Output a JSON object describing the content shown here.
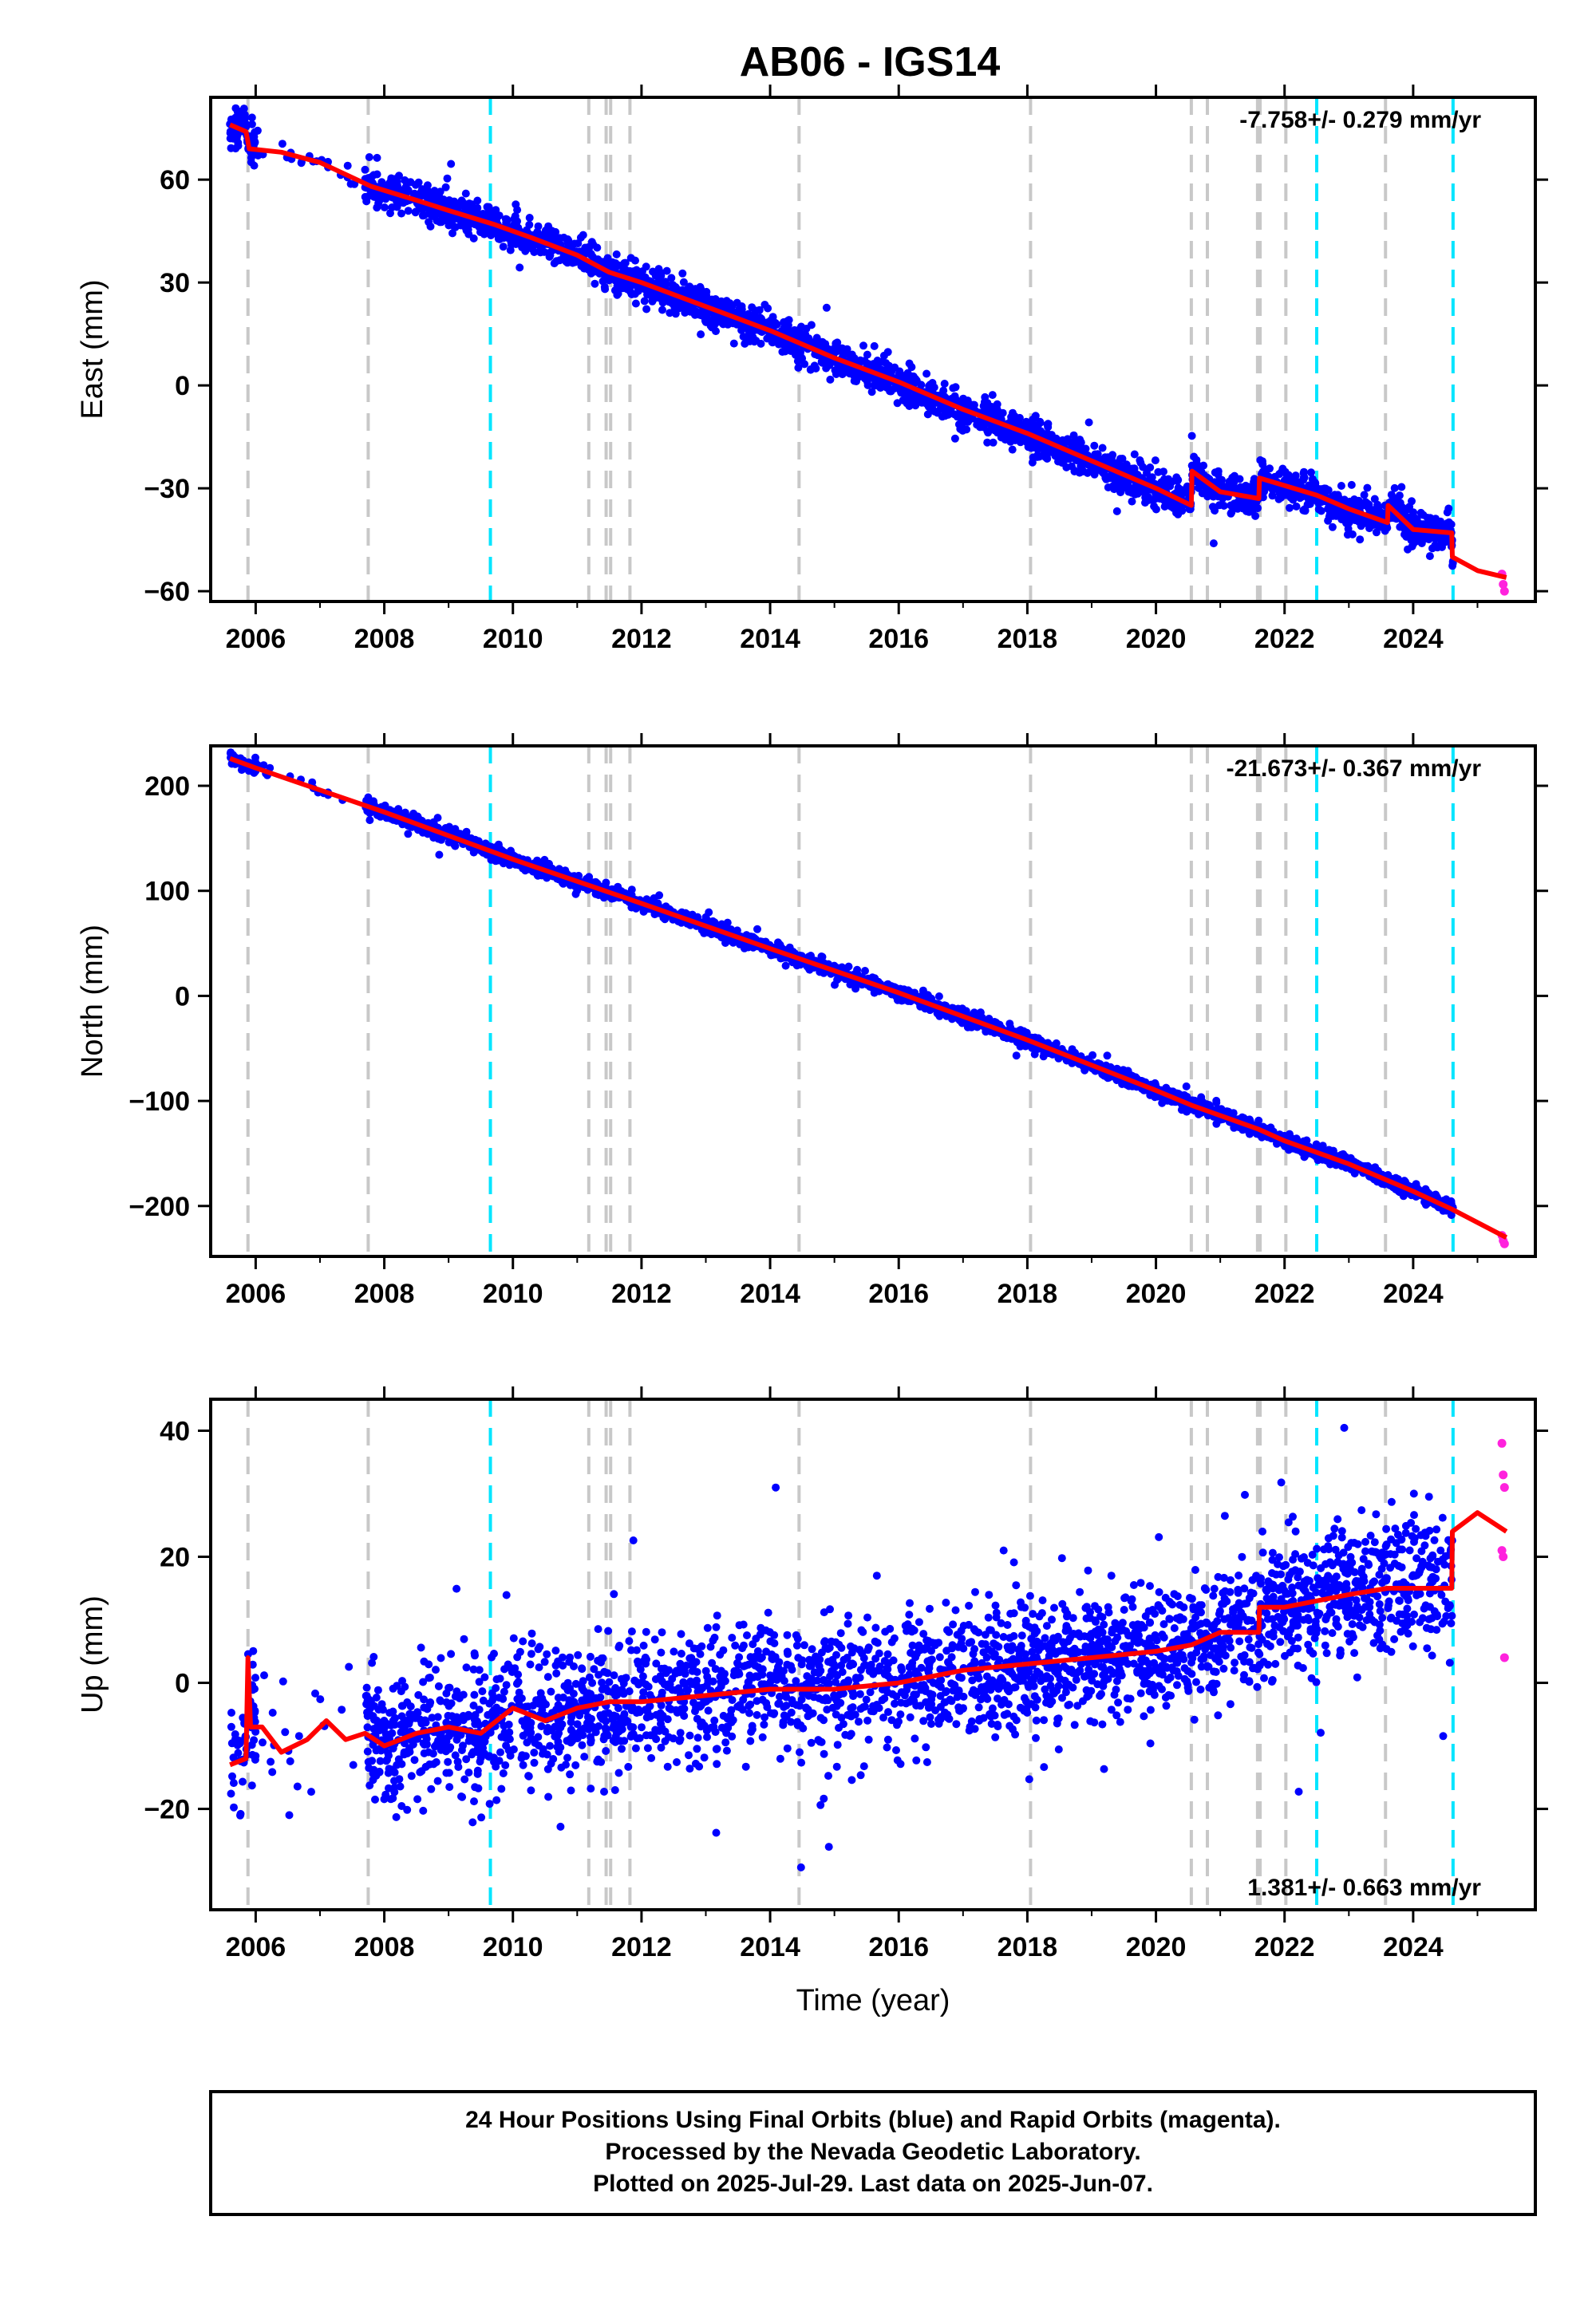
{
  "title": "AB06 - IGS14",
  "footer": {
    "line1": "24 Hour Positions Using Final Orbits (blue) and Rapid Orbits (magenta).",
    "line2": "Processed by the Nevada Geodetic Laboratory.",
    "line3": "Plotted on 2025-Jul-29. Last data on 2025-Jun-07."
  },
  "colors": {
    "final": "#0000ff",
    "rapid": "#ff22dd",
    "model": "#ff0000",
    "eq_line": "#00e5ff",
    "equip_line": "#c8c8c8"
  },
  "chart_data": [
    {
      "type": "scatter",
      "component": "east",
      "ylabel": "East (mm)",
      "xlabel": "",
      "xlim": [
        2005.3,
        2025.9
      ],
      "ylim": [
        -63,
        84
      ],
      "xticks": [
        2006,
        2008,
        2010,
        2012,
        2014,
        2016,
        2018,
        2020,
        2022,
        2024
      ],
      "xtick_labels": [
        "2006",
        "2008",
        "2010",
        "2012",
        "2014",
        "2016",
        "2018",
        "2020",
        "2022",
        "2024"
      ],
      "yticks": [
        -60,
        -30,
        0,
        30,
        60
      ],
      "ytick_labels": [
        "−60",
        "−30",
        "0",
        "30",
        "60"
      ],
      "rate_text": "-7.758+/- 0.279 mm/yr",
      "rate_position": "top-right",
      "model_points": [
        [
          2005.6,
          76
        ],
        [
          2005.85,
          74
        ],
        [
          2005.9,
          69
        ],
        [
          2006.4,
          68
        ],
        [
          2007.0,
          65
        ],
        [
          2007.8,
          58
        ],
        [
          2008.5,
          54
        ],
        [
          2009.0,
          51
        ],
        [
          2009.7,
          47
        ],
        [
          2010.3,
          43
        ],
        [
          2011.0,
          38
        ],
        [
          2011.5,
          33
        ],
        [
          2012.0,
          30
        ],
        [
          2013.0,
          23
        ],
        [
          2014.0,
          16
        ],
        [
          2015.0,
          8
        ],
        [
          2016.0,
          1
        ],
        [
          2017.0,
          -7
        ],
        [
          2018.0,
          -14
        ],
        [
          2019.0,
          -22
        ],
        [
          2020.0,
          -30
        ],
        [
          2020.55,
          -35
        ],
        [
          2020.56,
          -25
        ],
        [
          2021.0,
          -31
        ],
        [
          2021.6,
          -33
        ],
        [
          2021.61,
          -27
        ],
        [
          2022.5,
          -32
        ],
        [
          2023.0,
          -36
        ],
        [
          2023.6,
          -40
        ],
        [
          2023.61,
          -35
        ],
        [
          2024.0,
          -42
        ],
        [
          2024.6,
          -43
        ],
        [
          2024.61,
          -50
        ],
        [
          2025.0,
          -54
        ],
        [
          2025.45,
          -56
        ]
      ],
      "rapid_points": [
        [
          2025.38,
          -55
        ],
        [
          2025.4,
          -58
        ],
        [
          2025.42,
          -60
        ]
      ],
      "scatter": {
        "start": 2005.6,
        "end": 2024.62,
        "gap_start": 2006.0,
        "gap_end": 2007.7,
        "spread": 2.6,
        "count": 3000,
        "seed": 11
      }
    },
    {
      "type": "scatter",
      "component": "north",
      "ylabel": "North (mm)",
      "xlabel": "",
      "xlim": [
        2005.3,
        2025.9
      ],
      "ylim": [
        -248,
        238
      ],
      "xticks": [
        2006,
        2008,
        2010,
        2012,
        2014,
        2016,
        2018,
        2020,
        2022,
        2024
      ],
      "xtick_labels": [
        "2006",
        "2008",
        "2010",
        "2012",
        "2014",
        "2016",
        "2018",
        "2020",
        "2022",
        "2024"
      ],
      "yticks": [
        -200,
        -100,
        0,
        100,
        200
      ],
      "ytick_labels": [
        "−200",
        "−100",
        "0",
        "100",
        "200"
      ],
      "rate_text": "-21.673+/- 0.367 mm/yr",
      "rate_position": "top-right",
      "model_points": [
        [
          2005.6,
          226
        ],
        [
          2006.0,
          217
        ],
        [
          2008.0,
          175
        ],
        [
          2010.0,
          130
        ],
        [
          2012.0,
          88
        ],
        [
          2014.0,
          45
        ],
        [
          2016.0,
          3
        ],
        [
          2018.0,
          -42
        ],
        [
          2020.0,
          -90
        ],
        [
          2020.55,
          -104
        ],
        [
          2021.6,
          -127
        ],
        [
          2022.0,
          -138
        ],
        [
          2023.0,
          -160
        ],
        [
          2024.0,
          -186
        ],
        [
          2024.6,
          -203
        ],
        [
          2025.45,
          -230
        ]
      ],
      "rapid_points": [
        [
          2025.38,
          -228
        ],
        [
          2025.4,
          -233
        ],
        [
          2025.42,
          -236
        ]
      ],
      "scatter": {
        "start": 2005.6,
        "end": 2024.62,
        "gap_start": 2006.0,
        "gap_end": 2007.7,
        "spread": 3.2,
        "count": 3000,
        "seed": 23
      }
    },
    {
      "type": "scatter",
      "component": "up",
      "ylabel": "Up (mm)",
      "xlabel": "Time (year)",
      "xlim": [
        2005.3,
        2025.9
      ],
      "ylim": [
        -36,
        45
      ],
      "xticks": [
        2006,
        2008,
        2010,
        2012,
        2014,
        2016,
        2018,
        2020,
        2022,
        2024
      ],
      "xtick_labels": [
        "2006",
        "2008",
        "2010",
        "2012",
        "2014",
        "2016",
        "2018",
        "2020",
        "2022",
        "2024"
      ],
      "yticks": [
        -20,
        0,
        20,
        40
      ],
      "ytick_labels": [
        "−20",
        "0",
        "20",
        "40"
      ],
      "rate_text": "1.381+/- 0.663 mm/yr",
      "rate_position": "bottom-right",
      "model_points": [
        [
          2005.6,
          -13
        ],
        [
          2005.85,
          -12
        ],
        [
          2005.88,
          4
        ],
        [
          2005.92,
          -7
        ],
        [
          2006.1,
          -7
        ],
        [
          2006.4,
          -11
        ],
        [
          2006.8,
          -9
        ],
        [
          2007.1,
          -6
        ],
        [
          2007.4,
          -9
        ],
        [
          2007.7,
          -8
        ],
        [
          2008.0,
          -10
        ],
        [
          2008.5,
          -8
        ],
        [
          2009.0,
          -7
        ],
        [
          2009.5,
          -8
        ],
        [
          2010.0,
          -4
        ],
        [
          2010.5,
          -6
        ],
        [
          2011.0,
          -4
        ],
        [
          2011.5,
          -3
        ],
        [
          2012.0,
          -3
        ],
        [
          2013.0,
          -2
        ],
        [
          2014.0,
          -1
        ],
        [
          2015.0,
          -1
        ],
        [
          2016.0,
          0
        ],
        [
          2017.0,
          2
        ],
        [
          2018.0,
          3
        ],
        [
          2019.0,
          4
        ],
        [
          2020.0,
          5
        ],
        [
          2020.55,
          6
        ],
        [
          2021.0,
          8
        ],
        [
          2021.6,
          8
        ],
        [
          2021.61,
          12
        ],
        [
          2022.0,
          12
        ],
        [
          2022.5,
          13
        ],
        [
          2023.0,
          14
        ],
        [
          2023.6,
          15
        ],
        [
          2024.0,
          15
        ],
        [
          2024.6,
          15
        ],
        [
          2024.61,
          24
        ],
        [
          2025.0,
          27
        ],
        [
          2025.45,
          24
        ]
      ],
      "rapid_points": [
        [
          2025.38,
          38
        ],
        [
          2025.4,
          33
        ],
        [
          2025.42,
          31
        ],
        [
          2025.38,
          21
        ],
        [
          2025.4,
          20
        ],
        [
          2025.42,
          4
        ]
      ],
      "scatter": {
        "start": 2005.6,
        "end": 2024.62,
        "gap_start": 2006.0,
        "gap_end": 2007.7,
        "spread": 5.0,
        "count": 3000,
        "seed": 37
      }
    }
  ],
  "events": {
    "equipment_changes": [
      2005.88,
      2007.75,
      2011.18,
      2011.45,
      2011.52,
      2011.82,
      2014.45,
      2018.05,
      2020.55,
      2020.8,
      2021.58,
      2021.62,
      2022.02,
      2023.57
    ],
    "earthquakes": [
      2009.65,
      2022.5,
      2024.62
    ]
  }
}
